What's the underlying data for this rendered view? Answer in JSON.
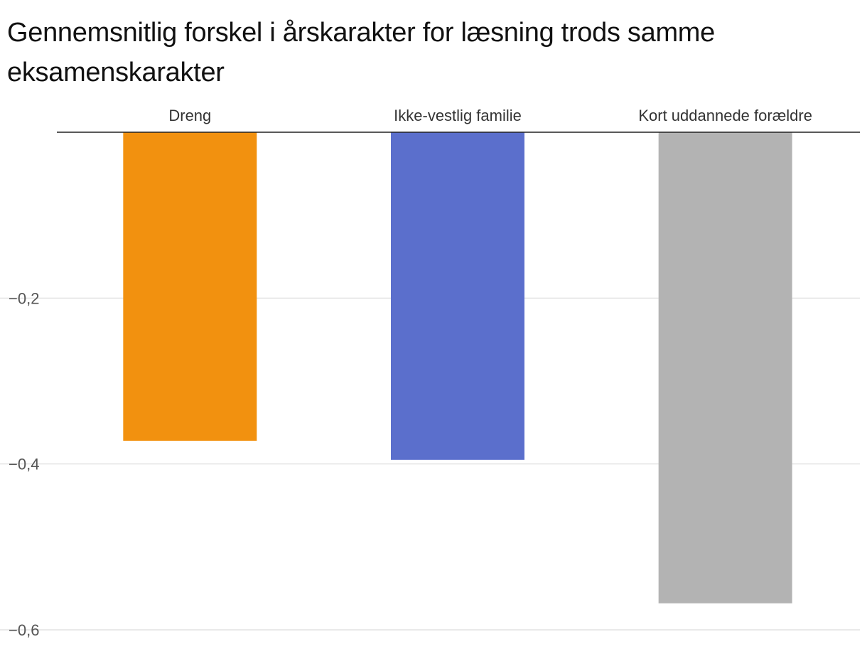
{
  "chart_data": {
    "type": "bar",
    "title": "Gennemsnitlig forskel i årskarakter for læsning trods samme eksamenskarakter",
    "xlabel": "",
    "ylabel": "",
    "categories": [
      "Dreng",
      "Ikke-vestlig familie",
      "Kort uddannede forældre"
    ],
    "values": [
      -0.372,
      -0.395,
      -0.568
    ],
    "colors": [
      "#f2910f",
      "#5b6fcc",
      "#b3b3b3"
    ],
    "ylim": [
      -0.6,
      0
    ],
    "yticks": [
      -0.2,
      -0.4,
      -0.6
    ],
    "ytick_labels": [
      "−0,2",
      "−0,4",
      "−0,6"
    ],
    "grid": true,
    "category_label_position": "top"
  }
}
